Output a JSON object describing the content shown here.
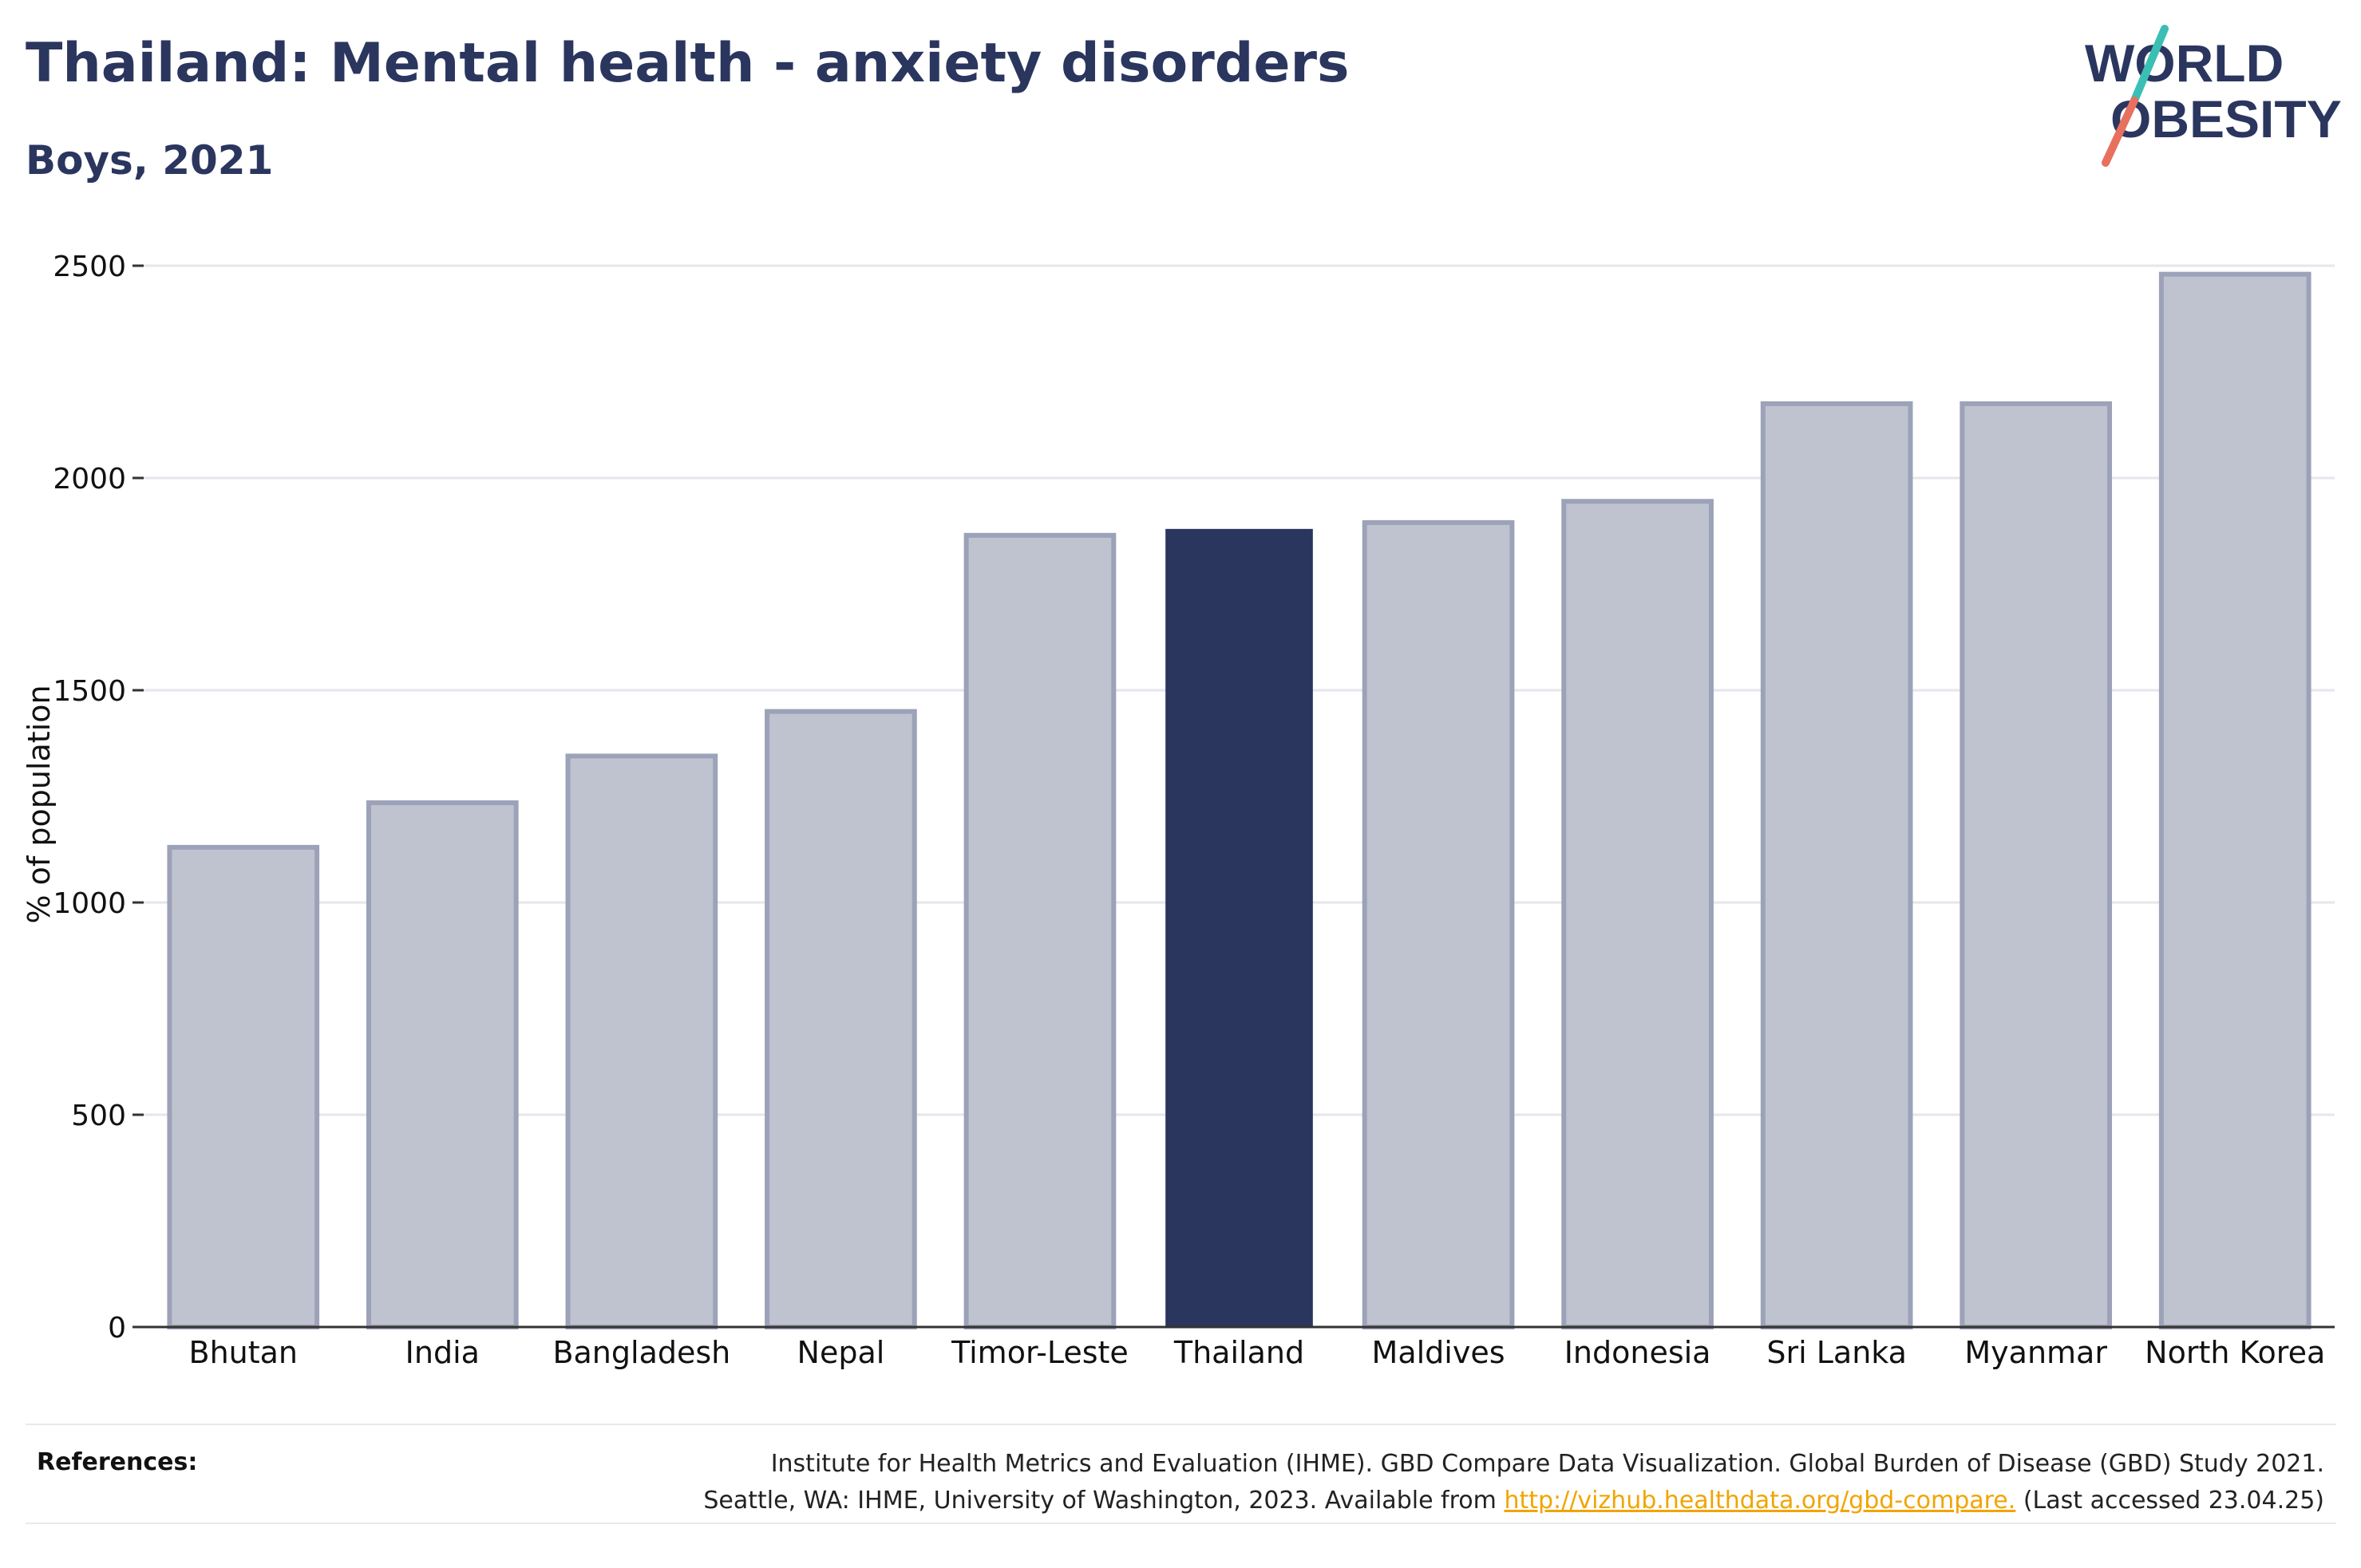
{
  "header": {
    "title": "Thailand: Mental health - anxiety disorders",
    "subtitle": "Boys, 2021"
  },
  "logo": {
    "line1": "WORLD",
    "line2": "OBESITY",
    "colors": {
      "text": "#2b365f",
      "slash_teal": "#3bbfb5",
      "slash_coral": "#e8705f"
    }
  },
  "chart_data": {
    "type": "bar",
    "title": "Thailand: Mental health - anxiety disorders",
    "subtitle": "Boys, 2021",
    "xlabel": "",
    "ylabel": "% of population",
    "ylim": [
      0,
      2500
    ],
    "yticks": [
      0,
      500,
      1000,
      1500,
      2000,
      2500
    ],
    "grid": true,
    "legend": "none",
    "highlight": "Thailand",
    "colors": {
      "highlight": "#2b365f",
      "default_fill": "#bfc3d0",
      "default_stroke": "#9ca2b8",
      "axis": "#333333",
      "grid": "#e6e6ec"
    },
    "categories": [
      "Bhutan",
      "India",
      "Bangladesh",
      "Nepal",
      "Timor-Leste",
      "Thailand",
      "Maldives",
      "Indonesia",
      "Sri Lanka",
      "Myanmar",
      "North Korea"
    ],
    "values": [
      1130,
      1235,
      1345,
      1450,
      1865,
      1880,
      1895,
      1945,
      2175,
      2175,
      2480
    ]
  },
  "references": {
    "label": "References:",
    "line1": "Institute for Health Metrics and Evaluation (IHME). GBD Compare Data Visualization. Global Burden of Disease (GBD) Study 2021.",
    "line2_prefix": "Seattle, WA: IHME, University of Washington, 2023. Available from",
    "link": "http://vizhub.healthdata.org/gbd-compare.",
    "line2_suffix": "(Last accessed 23.04.25)"
  }
}
